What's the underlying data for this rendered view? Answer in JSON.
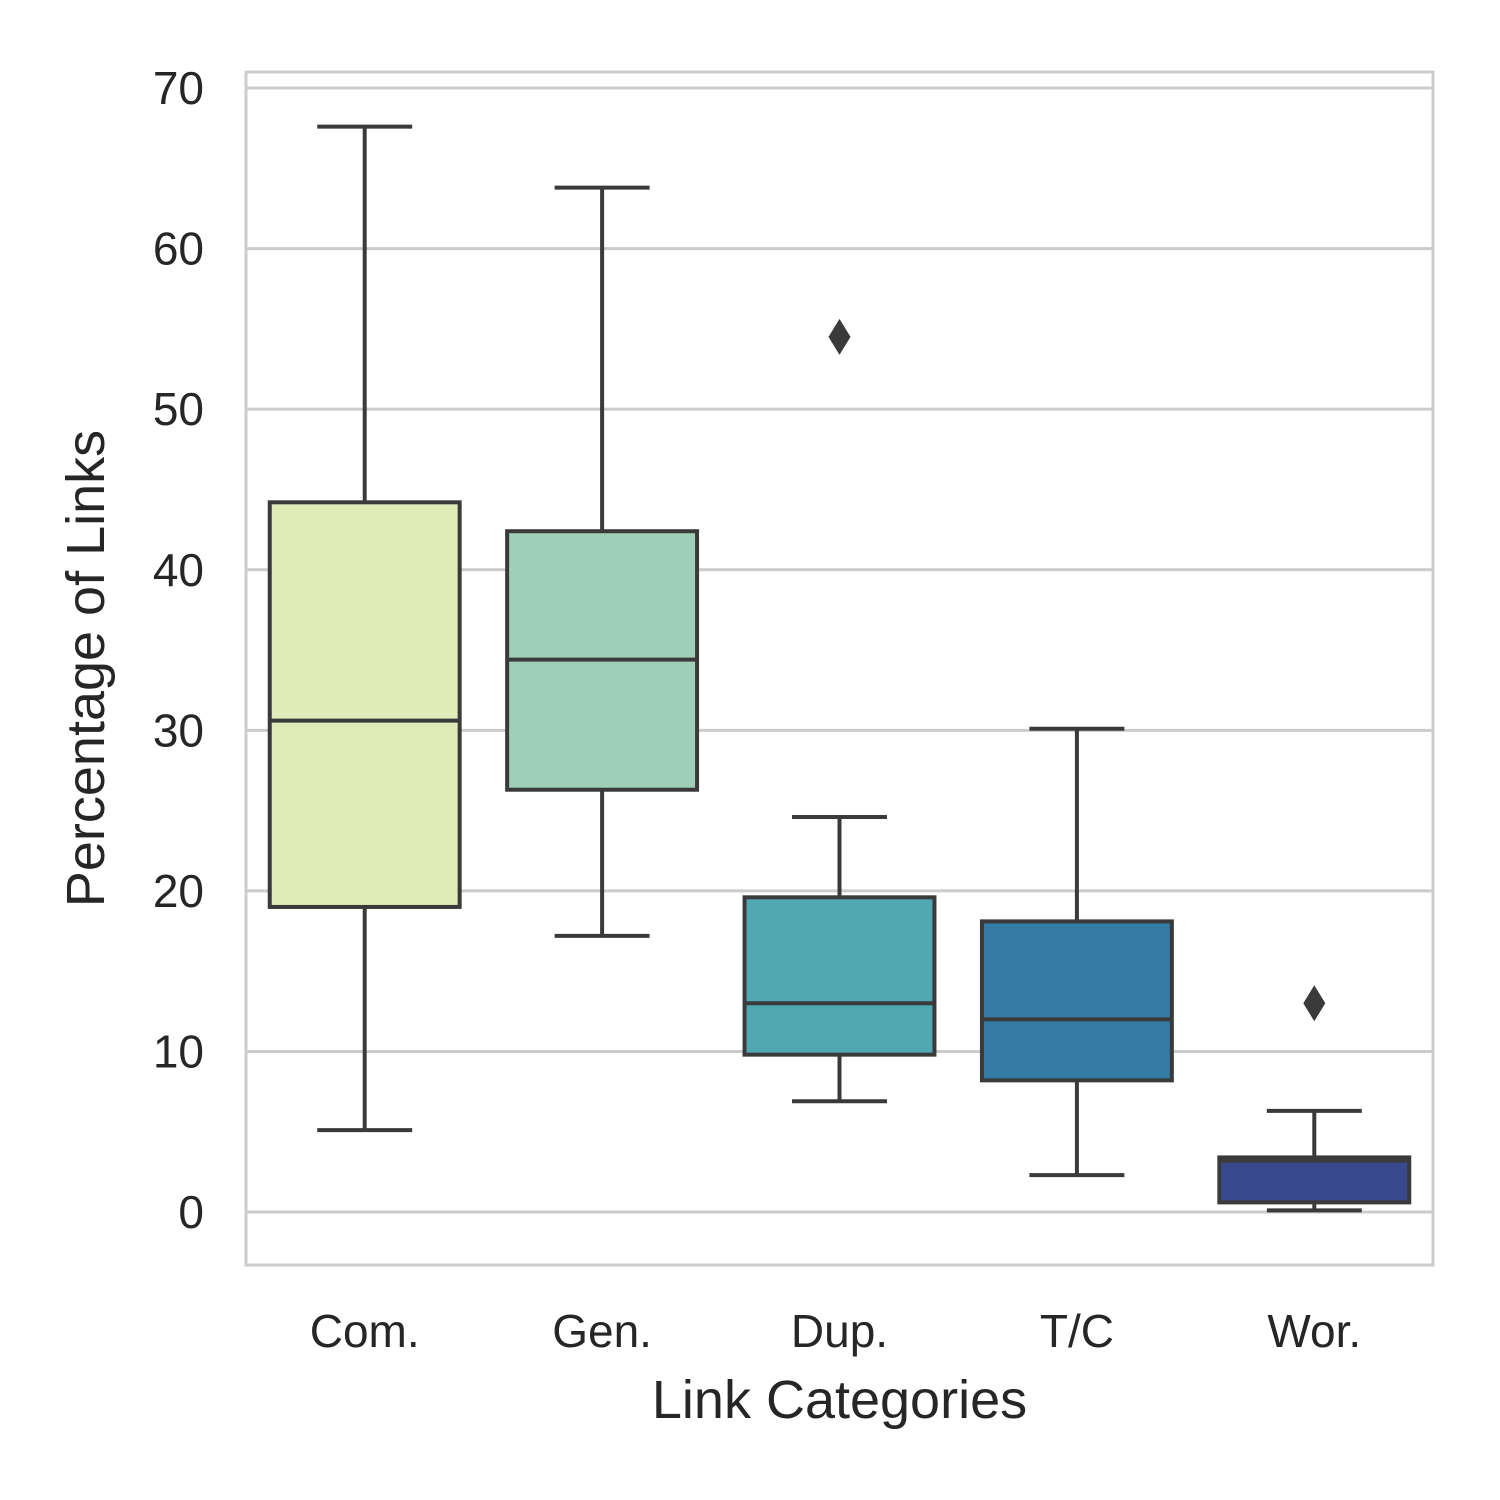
{
  "chart_data": {
    "type": "box",
    "title": "",
    "xlabel": "Link Categories",
    "ylabel": "Percentage of Links",
    "categories": [
      "Com.",
      "Gen.",
      "Dup.",
      "T/C",
      "Wor."
    ],
    "ylim": [
      -3.3,
      71
    ],
    "yticks": [
      0,
      10,
      20,
      30,
      40,
      50,
      60,
      70
    ],
    "grid": true,
    "boxes": [
      {
        "category": "Com.",
        "whisker_low": 5.1,
        "q1": 19.0,
        "median": 30.6,
        "q3": 44.2,
        "whisker_high": 67.6,
        "outliers": [],
        "color": "#dfecb8"
      },
      {
        "category": "Gen.",
        "whisker_low": 17.2,
        "q1": 26.3,
        "median": 34.4,
        "q3": 42.4,
        "whisker_high": 63.8,
        "outliers": [],
        "color": "#a0cfb8"
      },
      {
        "category": "Dup.",
        "whisker_low": 6.9,
        "q1": 9.8,
        "median": 13.0,
        "q3": 19.6,
        "whisker_high": 24.6,
        "outliers": [
          54.5
        ],
        "color": "#51a8b3"
      },
      {
        "category": "T/C",
        "whisker_low": 2.3,
        "q1": 8.2,
        "median": 12.0,
        "q3": 18.1,
        "whisker_high": 30.1,
        "outliers": [],
        "color": "#347ca6"
      },
      {
        "category": "Wor.",
        "whisker_low": 0.1,
        "q1": 0.6,
        "median": 3.2,
        "q3": 3.4,
        "whisker_high": 6.3,
        "outliers": [
          13.0
        ],
        "color": "#394a8c"
      }
    ]
  }
}
